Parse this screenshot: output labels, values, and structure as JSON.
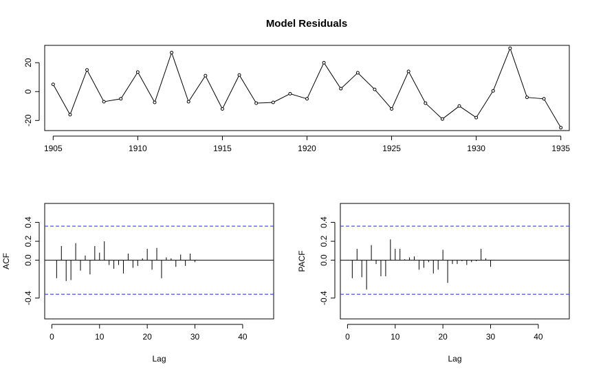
{
  "figure": {
    "title": "Model Residuals"
  },
  "chart_data": [
    {
      "id": "residuals",
      "type": "line",
      "title": "Model Residuals",
      "xlabel": "",
      "ylabel": "",
      "xlim": [
        1904.5,
        1935.5
      ],
      "ylim": [
        -27,
        32
      ],
      "x_ticks": [
        1905,
        1910,
        1915,
        1920,
        1925,
        1930,
        1935
      ],
      "y_ticks": [
        -20,
        0,
        20
      ],
      "markers": "open-circle",
      "grid": false,
      "x": [
        1905,
        1906,
        1907,
        1908,
        1909,
        1910,
        1911,
        1912,
        1913,
        1914,
        1915,
        1916,
        1917,
        1918,
        1919,
        1920,
        1921,
        1922,
        1923,
        1924,
        1925,
        1926,
        1927,
        1928,
        1929,
        1930,
        1931,
        1932,
        1933,
        1934,
        1935
      ],
      "values": [
        5,
        -16,
        15,
        -7,
        -5,
        13.5,
        -7.5,
        27,
        -7,
        11,
        -12,
        11.5,
        -8,
        -7.5,
        -1.5,
        -5,
        20,
        2,
        13,
        1.5,
        -12,
        14,
        -8,
        -19,
        -10,
        -18,
        0.5,
        30,
        -4,
        -5,
        -25
      ]
    },
    {
      "id": "acf",
      "type": "bar",
      "style": "spikes",
      "xlabel": "Lag",
      "ylabel": "ACF",
      "xlim": [
        -1.5,
        46.5
      ],
      "ylim": [
        -0.62,
        0.6
      ],
      "x_ticks": [
        0,
        10,
        20,
        30,
        40
      ],
      "y_ticks": [
        -0.4,
        0.0,
        0.2,
        0.4
      ],
      "y_tick_labels": [
        "-0.4",
        "0.0",
        "0.2",
        "0.4"
      ],
      "confidence_bound": 0.36,
      "confidence_color": "#3a3aff",
      "x": [
        1,
        2,
        3,
        4,
        5,
        6,
        7,
        8,
        9,
        10,
        11,
        12,
        13,
        14,
        15,
        16,
        17,
        18,
        19,
        20,
        21,
        22,
        23,
        24,
        25,
        26,
        27,
        28,
        29,
        30
      ],
      "values": [
        -0.19,
        0.15,
        -0.22,
        -0.21,
        0.18,
        -0.11,
        0.05,
        -0.15,
        0.15,
        0.08,
        0.2,
        -0.05,
        -0.09,
        -0.05,
        -0.14,
        0.07,
        -0.08,
        -0.06,
        0.02,
        0.12,
        -0.1,
        0.13,
        -0.19,
        0.03,
        0.02,
        -0.07,
        0.06,
        -0.06,
        0.07,
        -0.02
      ]
    },
    {
      "id": "pacf",
      "type": "bar",
      "style": "spikes",
      "xlabel": "Lag",
      "ylabel": "PACF",
      "xlim": [
        -1.5,
        46.5
      ],
      "ylim": [
        -0.62,
        0.6
      ],
      "x_ticks": [
        0,
        10,
        20,
        30,
        40
      ],
      "y_ticks": [
        -0.4,
        0.0,
        0.2,
        0.4
      ],
      "y_tick_labels": [
        "-0.4",
        "0.0",
        "0.2",
        "0.4"
      ],
      "confidence_bound": 0.36,
      "confidence_color": "#3a3aff",
      "x": [
        1,
        2,
        3,
        4,
        5,
        6,
        7,
        8,
        9,
        10,
        11,
        12,
        13,
        14,
        15,
        16,
        17,
        18,
        19,
        20,
        21,
        22,
        23,
        24,
        25,
        26,
        27,
        28,
        29,
        30
      ],
      "values": [
        -0.19,
        0.12,
        -0.18,
        -0.31,
        0.16,
        -0.04,
        -0.17,
        -0.17,
        0.22,
        0.12,
        0.12,
        0.01,
        0.03,
        0.04,
        -0.1,
        -0.08,
        -0.02,
        -0.14,
        -0.1,
        0.11,
        -0.24,
        -0.04,
        -0.04,
        -0.01,
        -0.05,
        -0.02,
        -0.01,
        0.12,
        0.02,
        -0.07
      ]
    }
  ]
}
